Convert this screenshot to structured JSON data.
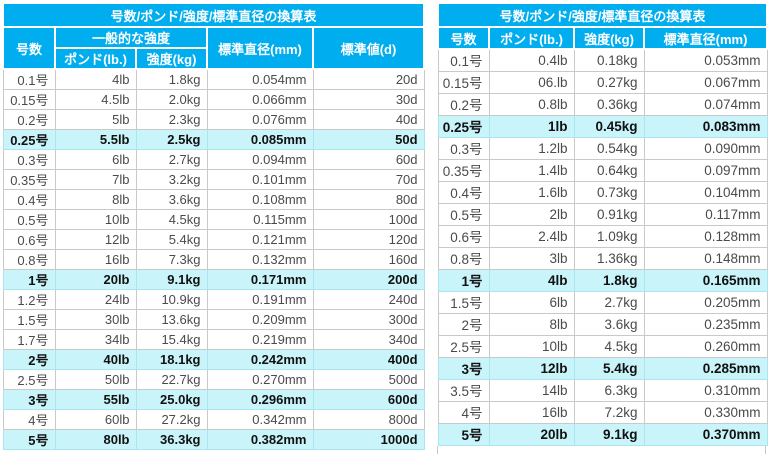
{
  "colors": {
    "header_bg": "#00AEEF",
    "highlight_bg": "#C9F4FA"
  },
  "left_table": {
    "title": "号数/ポンド/強度/標準直径の換算表",
    "headers": {
      "size": "号数",
      "strength_group": "一般的な強度",
      "pound": "ポンド(lb.)",
      "kg": "強度(kg)",
      "diameter": "標準直径(mm)",
      "denier": "標準値(d)"
    },
    "rows": [
      {
        "size": "0.1号",
        "lb": "4lb",
        "kg": "1.8kg",
        "mm": "0.054mm",
        "d": "20d",
        "highlight": false
      },
      {
        "size": "0.15号",
        "lb": "4.5lb",
        "kg": "2.0kg",
        "mm": "0.066mm",
        "d": "30d",
        "highlight": false
      },
      {
        "size": "0.2号",
        "lb": "5lb",
        "kg": "2.3kg",
        "mm": "0.076mm",
        "d": "40d",
        "highlight": false
      },
      {
        "size": "0.25号",
        "lb": "5.5lb",
        "kg": "2.5kg",
        "mm": "0.085mm",
        "d": "50d",
        "highlight": true
      },
      {
        "size": "0.3号",
        "lb": "6lb",
        "kg": "2.7kg",
        "mm": "0.094mm",
        "d": "60d",
        "highlight": false
      },
      {
        "size": "0.35号",
        "lb": "7lb",
        "kg": "3.2kg",
        "mm": "0.101mm",
        "d": "70d",
        "highlight": false
      },
      {
        "size": "0.4号",
        "lb": "8lb",
        "kg": "3.6kg",
        "mm": "0.108mm",
        "d": "80d",
        "highlight": false
      },
      {
        "size": "0.5号",
        "lb": "10lb",
        "kg": "4.5kg",
        "mm": "0.115mm",
        "d": "100d",
        "highlight": false
      },
      {
        "size": "0.6号",
        "lb": "12lb",
        "kg": "5.4kg",
        "mm": "0.121mm",
        "d": "120d",
        "highlight": false
      },
      {
        "size": "0.8号",
        "lb": "16lb",
        "kg": "7.3kg",
        "mm": "0.132mm",
        "d": "160d",
        "highlight": false
      },
      {
        "size": "1号",
        "lb": "20lb",
        "kg": "9.1kg",
        "mm": "0.171mm",
        "d": "200d",
        "highlight": true
      },
      {
        "size": "1.2号",
        "lb": "24lb",
        "kg": "10.9kg",
        "mm": "0.191mm",
        "d": "240d",
        "highlight": false
      },
      {
        "size": "1.5号",
        "lb": "30lb",
        "kg": "13.6kg",
        "mm": "0.209mm",
        "d": "300d",
        "highlight": false
      },
      {
        "size": "1.7号",
        "lb": "34lb",
        "kg": "15.4kg",
        "mm": "0.219mm",
        "d": "340d",
        "highlight": false
      },
      {
        "size": "2号",
        "lb": "40lb",
        "kg": "18.1kg",
        "mm": "0.242mm",
        "d": "400d",
        "highlight": true
      },
      {
        "size": "2.5号",
        "lb": "50lb",
        "kg": "22.7kg",
        "mm": "0.270mm",
        "d": "500d",
        "highlight": false
      },
      {
        "size": "3号",
        "lb": "55lb",
        "kg": "25.0kg",
        "mm": "0.296mm",
        "d": "600d",
        "highlight": true
      },
      {
        "size": "4号",
        "lb": "60lb",
        "kg": "27.2kg",
        "mm": "0.342mm",
        "d": "800d",
        "highlight": false
      },
      {
        "size": "5号",
        "lb": "80lb",
        "kg": "36.3kg",
        "mm": "0.382mm",
        "d": "1000d",
        "highlight": true
      }
    ]
  },
  "right_table": {
    "title": "号数/ポンド/強度/標準直径の換算表",
    "headers": {
      "size": "号数",
      "pound": "ポンド(lb.)",
      "kg": "強度(kg)",
      "diameter": "標準直径(mm)"
    },
    "rows": [
      {
        "size": "0.1号",
        "lb": "0.4lb",
        "kg": "0.18kg",
        "mm": "0.053mm",
        "highlight": false
      },
      {
        "size": "0.15号",
        "lb": "06.lb",
        "kg": "0.27kg",
        "mm": "0.067mm",
        "highlight": false
      },
      {
        "size": "0.2号",
        "lb": "0.8lb",
        "kg": "0.36kg",
        "mm": "0.074mm",
        "highlight": false
      },
      {
        "size": "0.25号",
        "lb": "1lb",
        "kg": "0.45kg",
        "mm": "0.083mm",
        "highlight": true
      },
      {
        "size": "0.3号",
        "lb": "1.2lb",
        "kg": "0.54kg",
        "mm": "0.090mm",
        "highlight": false
      },
      {
        "size": "0.35号",
        "lb": "1.4lb",
        "kg": "0.64kg",
        "mm": "0.097mm",
        "highlight": false
      },
      {
        "size": "0.4号",
        "lb": "1.6lb",
        "kg": "0.73kg",
        "mm": "0.104mm",
        "highlight": false
      },
      {
        "size": "0.5号",
        "lb": "2lb",
        "kg": "0.91kg",
        "mm": "0.117mm",
        "highlight": false
      },
      {
        "size": "0.6号",
        "lb": "2.4lb",
        "kg": "1.09kg",
        "mm": "0.128mm",
        "highlight": false
      },
      {
        "size": "0.8号",
        "lb": "3lb",
        "kg": "1.36kg",
        "mm": "0.148mm",
        "highlight": false
      },
      {
        "size": "1号",
        "lb": "4lb",
        "kg": "1.8kg",
        "mm": "0.165mm",
        "highlight": true
      },
      {
        "size": "1.5号",
        "lb": "6lb",
        "kg": "2.7kg",
        "mm": "0.205mm",
        "highlight": false
      },
      {
        "size": "2号",
        "lb": "8lb",
        "kg": "3.6kg",
        "mm": "0.235mm",
        "highlight": false
      },
      {
        "size": "2.5号",
        "lb": "10lb",
        "kg": "4.5kg",
        "mm": "0.260mm",
        "highlight": false
      },
      {
        "size": "3号",
        "lb": "12lb",
        "kg": "5.4kg",
        "mm": "0.285mm",
        "highlight": true
      },
      {
        "size": "3.5号",
        "lb": "14lb",
        "kg": "6.3kg",
        "mm": "0.310mm",
        "highlight": false
      },
      {
        "size": "4号",
        "lb": "16lb",
        "kg": "7.2kg",
        "mm": "0.330mm",
        "highlight": false
      },
      {
        "size": "5号",
        "lb": "20lb",
        "kg": "9.1kg",
        "mm": "0.370mm",
        "highlight": true
      }
    ]
  }
}
